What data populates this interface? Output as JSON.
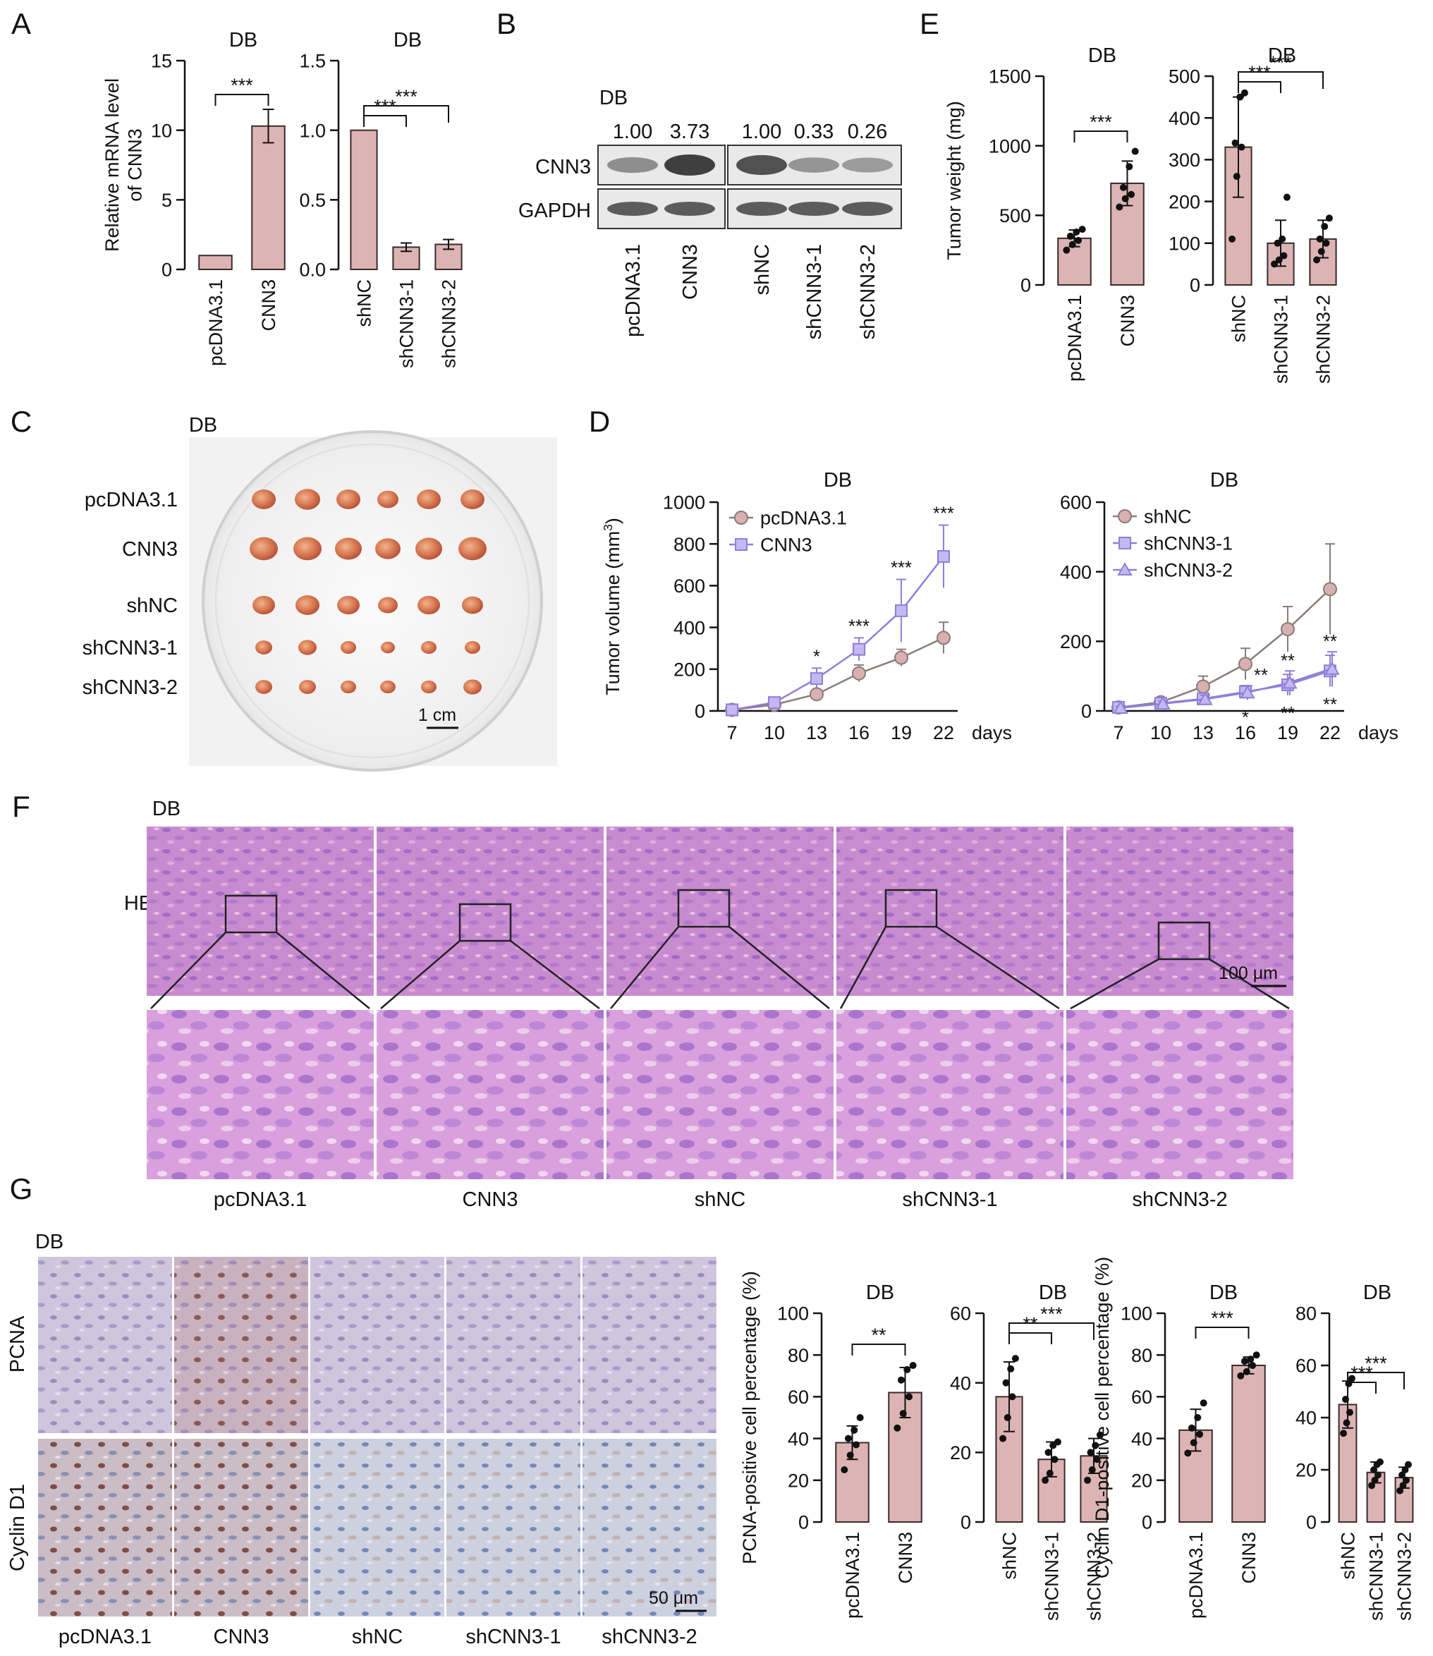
{
  "panel_letters": [
    "A",
    "B",
    "C",
    "D",
    "E",
    "F",
    "G"
  ],
  "db_label": "DB",
  "sig": {
    "s1": "*",
    "s2": "**",
    "s3": "***"
  },
  "colors": {
    "bar": "#ddb4b4",
    "bar_stroke": "#3a2a2a",
    "grey_line": "#8a7b79",
    "purple_line": "#8f7fd8",
    "pink_dot": "#d9b0b0"
  },
  "groups_oe": [
    "pcDNA3.1",
    "CNN3"
  ],
  "groups_kd": [
    "shNC",
    "shCNN3-1",
    "shCNN3-2"
  ],
  "panel_a": {
    "ylabel": [
      "Relative mRNA level",
      "of CNN3"
    ]
  },
  "panel_b": {
    "ratios": [
      "1.00",
      "3.73",
      "1.00",
      "0.33",
      "0.26"
    ],
    "rows": [
      "CNN3",
      "GAPDH"
    ],
    "lanes": [
      "pcDNA3.1",
      "CNN3",
      "shNC",
      "shCNN3-1",
      "shCNN3-2"
    ]
  },
  "panel_c": {
    "rows": [
      "pcDNA3.1",
      "CNN3",
      "shNC",
      "shCNN3-1",
      "shCNN3-2"
    ],
    "scale": "1 cm"
  },
  "panel_d": {
    "ylabel": "Tumor volume (mm",
    "ylabel_sup": "3",
    "ylabel_end": ")",
    "days": "days"
  },
  "panel_e": {
    "ylabel": "Tumor weight (mg)"
  },
  "panel_f": {
    "row_label": "HE",
    "scale": "100 μm",
    "columns": [
      "pcDNA3.1",
      "CNN3",
      "shNC",
      "shCNN3-1",
      "shCNN3-2"
    ]
  },
  "panel_g": {
    "rows": [
      "PCNA",
      "Cyclin D1"
    ],
    "columns": [
      "pcDNA3.1",
      "CNN3",
      "shNC",
      "shCNN3-1",
      "shCNN3-2"
    ],
    "scale": "50 μm",
    "ylabel_pcna": "PCNA-positive cell percentage (%)",
    "ylabel_cyclin": "Cyclin D1-positive cell percentage (%)"
  },
  "chart_data": [
    {
      "id": "A-left",
      "type": "bar",
      "title": "DB",
      "ylabel": "Relative mRNA level of CNN3",
      "categories": [
        "pcDNA3.1",
        "CNN3"
      ],
      "values": [
        1.0,
        10.3
      ],
      "errors": [
        0,
        1.2
      ],
      "ylim": [
        0,
        15
      ],
      "yticks": [
        0,
        5,
        10,
        15
      ],
      "comparisons": [
        {
          "a": 0,
          "b": 1,
          "sig": "***"
        }
      ]
    },
    {
      "id": "A-right",
      "type": "bar",
      "title": "DB",
      "categories": [
        "shNC",
        "shCNN3-1",
        "shCNN3-2"
      ],
      "values": [
        1.0,
        0.16,
        0.18
      ],
      "errors": [
        0,
        0.03,
        0.035
      ],
      "ylim": [
        0,
        1.5
      ],
      "yticks": [
        "0.0",
        "0.5",
        "1.0",
        "1.5"
      ],
      "comparisons": [
        {
          "a": 0,
          "b": 1,
          "sig": "***"
        },
        {
          "a": 0,
          "b": 2,
          "sig": "***"
        }
      ]
    },
    {
      "id": "E-left",
      "type": "bar",
      "title": "DB",
      "ylabel": "Tumor weight (mg)",
      "categories": [
        "pcDNA3.1",
        "CNN3"
      ],
      "values": [
        335,
        730
      ],
      "errors": [
        60,
        160
      ],
      "ylim": [
        0,
        1500
      ],
      "yticks": [
        0,
        500,
        1000,
        1500
      ],
      "points": [
        [
          250,
          290,
          320,
          350,
          380,
          400
        ],
        [
          560,
          620,
          650,
          700,
          850,
          960
        ]
      ],
      "comparisons": [
        {
          "a": 0,
          "b": 1,
          "sig": "***"
        }
      ]
    },
    {
      "id": "E-right",
      "type": "bar",
      "title": "DB",
      "categories": [
        "shNC",
        "shCNN3-1",
        "shCNN3-2"
      ],
      "values": [
        330,
        100,
        110
      ],
      "errors": [
        120,
        55,
        45
      ],
      "ylim": [
        0,
        500
      ],
      "yticks": [
        0,
        100,
        200,
        300,
        400,
        500
      ],
      "points": [
        [
          110,
          260,
          330,
          340,
          450,
          460
        ],
        [
          50,
          60,
          70,
          100,
          110,
          210
        ],
        [
          60,
          80,
          100,
          110,
          140,
          160
        ]
      ],
      "comparisons": [
        {
          "a": 0,
          "b": 1,
          "sig": "***"
        },
        {
          "a": 0,
          "b": 2,
          "sig": "***"
        }
      ]
    },
    {
      "id": "D-left",
      "type": "line",
      "title": "DB",
      "ylabel": "Tumor volume (mm3)",
      "x": [
        7,
        10,
        13,
        16,
        19,
        22
      ],
      "ylim": [
        0,
        1000
      ],
      "yticks": [
        0,
        200,
        400,
        600,
        800,
        1000
      ],
      "series": [
        {
          "name": "pcDNA3.1",
          "values": [
            5,
            30,
            80,
            180,
            255,
            350
          ],
          "errors": [
            4,
            8,
            18,
            40,
            40,
            75
          ],
          "marker": "circle"
        },
        {
          "name": "CNN3",
          "values": [
            5,
            40,
            155,
            295,
            480,
            740
          ],
          "errors": [
            4,
            12,
            50,
            55,
            150,
            150
          ],
          "marker": "square"
        }
      ],
      "annotations": [
        {
          "x": 13,
          "text": "*"
        },
        {
          "x": 16,
          "text": "***"
        },
        {
          "x": 19,
          "text": "***"
        },
        {
          "x": 22,
          "text": "***"
        }
      ]
    },
    {
      "id": "D-right",
      "type": "line",
      "title": "DB",
      "x": [
        7,
        10,
        13,
        16,
        19,
        22
      ],
      "ylim": [
        0,
        600
      ],
      "yticks": [
        0,
        200,
        400,
        600
      ],
      "series": [
        {
          "name": "shNC",
          "values": [
            10,
            25,
            70,
            135,
            235,
            350
          ],
          "errors": [
            6,
            10,
            30,
            45,
            65,
            130
          ],
          "marker": "circle"
        },
        {
          "name": "shCNN3-1",
          "values": [
            10,
            22,
            35,
            55,
            75,
            115
          ],
          "errors": [
            5,
            8,
            12,
            18,
            30,
            45
          ],
          "marker": "square"
        },
        {
          "name": "shCNN3-2",
          "values": [
            8,
            20,
            33,
            52,
            80,
            120
          ],
          "errors": [
            5,
            8,
            12,
            20,
            35,
            50
          ],
          "marker": "triangle"
        }
      ],
      "annotations": [
        {
          "x": 16,
          "text": "**",
          "pos": "above"
        },
        {
          "x": 16,
          "text": "*",
          "pos": "below"
        },
        {
          "x": 19,
          "text": "**",
          "pos": "above"
        },
        {
          "x": 19,
          "text": "**",
          "pos": "below"
        },
        {
          "x": 22,
          "text": "**",
          "pos": "above"
        },
        {
          "x": 22,
          "text": "**",
          "pos": "below"
        }
      ]
    },
    {
      "id": "G-1",
      "type": "bar",
      "title": "DB",
      "ylabel": "PCNA-positive cell percentage (%)",
      "categories": [
        "pcDNA3.1",
        "CNN3"
      ],
      "values": [
        38,
        62
      ],
      "errors": [
        8,
        12
      ],
      "ylim": [
        0,
        100
      ],
      "yticks": [
        0,
        20,
        40,
        60,
        80,
        100
      ],
      "points": [
        [
          25,
          32,
          37,
          40,
          44,
          50
        ],
        [
          45,
          52,
          60,
          68,
          73,
          75
        ]
      ],
      "comparisons": [
        {
          "a": 0,
          "b": 1,
          "sig": "**"
        }
      ]
    },
    {
      "id": "G-2",
      "type": "bar",
      "title": "DB",
      "categories": [
        "shNC",
        "shCNN3-1",
        "shCNN3-2"
      ],
      "values": [
        36,
        18,
        19
      ],
      "errors": [
        10,
        5,
        5
      ],
      "ylim": [
        0,
        60
      ],
      "yticks": [
        0,
        20,
        40,
        60
      ],
      "points": [
        [
          24,
          30,
          36,
          40,
          44,
          47
        ],
        [
          12,
          14,
          18,
          20,
          22,
          23
        ],
        [
          12,
          15,
          18,
          20,
          22,
          25
        ]
      ],
      "comparisons": [
        {
          "a": 0,
          "b": 1,
          "sig": "**"
        },
        {
          "a": 0,
          "b": 2,
          "sig": "***"
        }
      ]
    },
    {
      "id": "G-3",
      "type": "bar",
      "title": "DB",
      "ylabel": "Cyclin D1-positive cell percentage (%)",
      "categories": [
        "pcDNA3.1",
        "CNN3"
      ],
      "values": [
        44,
        75
      ],
      "errors": [
        10,
        4
      ],
      "ylim": [
        0,
        100
      ],
      "yticks": [
        0,
        20,
        40,
        60,
        80,
        100
      ],
      "points": [
        [
          33,
          38,
          42,
          45,
          50,
          57
        ],
        [
          70,
          72,
          75,
          77,
          78,
          80
        ]
      ],
      "comparisons": [
        {
          "a": 0,
          "b": 1,
          "sig": "***"
        }
      ]
    },
    {
      "id": "G-4",
      "type": "bar",
      "title": "DB",
      "categories": [
        "shNC",
        "shCNN3-1",
        "shCNN3-2"
      ],
      "values": [
        45,
        19,
        17
      ],
      "errors": [
        9,
        4,
        4
      ],
      "ylim": [
        0,
        80
      ],
      "yticks": [
        0,
        20,
        40,
        60,
        80
      ],
      "points": [
        [
          34,
          38,
          42,
          47,
          53,
          55
        ],
        [
          14,
          16,
          18,
          20,
          22,
          23
        ],
        [
          12,
          14,
          16,
          18,
          20,
          22
        ]
      ],
      "comparisons": [
        {
          "a": 0,
          "b": 1,
          "sig": "***"
        },
        {
          "a": 0,
          "b": 2,
          "sig": "***"
        }
      ]
    }
  ]
}
